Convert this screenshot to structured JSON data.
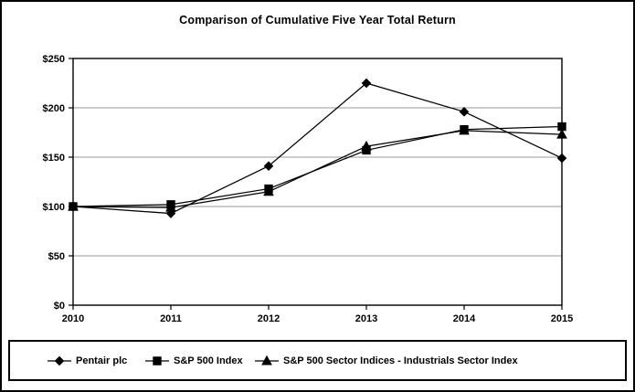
{
  "title": "Comparison of Cumulative Five Year Total Return",
  "colors": {
    "series": "#000000",
    "gridline": "#999999",
    "axis": "#000000",
    "background": "#ffffff"
  },
  "chart_data": {
    "type": "line",
    "title": "Comparison of Cumulative Five Year Total Return",
    "categories": [
      "2010",
      "2011",
      "2012",
      "2013",
      "2014",
      "2015"
    ],
    "series": [
      {
        "name": "Pentair plc",
        "marker": "diamond",
        "values": [
          100,
          93,
          141,
          225,
          196,
          149
        ]
      },
      {
        "name": "S&P 500 Index",
        "marker": "square",
        "values": [
          100,
          102,
          118,
          157,
          178,
          181
        ]
      },
      {
        "name": "S&P 500 Sector Indices - Industrials Sector Index",
        "marker": "triangle",
        "values": [
          100,
          99,
          115,
          161,
          177,
          173
        ]
      }
    ],
    "xlabel": "",
    "ylabel": "",
    "ylim": [
      0,
      250
    ],
    "ytick_step": 50,
    "ytick_labels": [
      "$0",
      "$50",
      "$100",
      "$150",
      "$200",
      "$250"
    ],
    "grid": true,
    "legend_position": "bottom"
  },
  "legend": {
    "items": [
      {
        "label": "Pentair plc"
      },
      {
        "label": "S&P 500 Index"
      },
      {
        "label": "S&P 500 Sector Indices - Industrials Sector Index"
      }
    ]
  }
}
